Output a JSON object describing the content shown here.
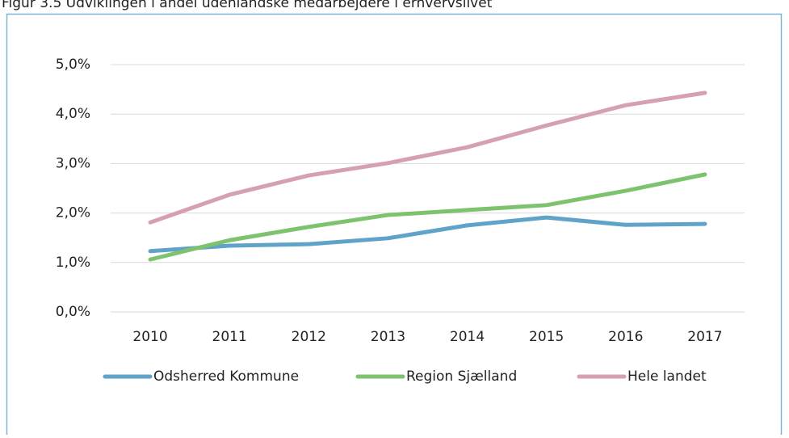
{
  "chart_data": {
    "type": "line",
    "title": "Figur 3.5 Udviklingen i andel udenlandske medarbejdere i erhvervslivet",
    "categories": [
      "2010",
      "2011",
      "2012",
      "2013",
      "2014",
      "2015",
      "2016",
      "2017"
    ],
    "series": [
      {
        "name": "Odsherred Kommune",
        "color": "#5fa3c8",
        "values": [
          1.23,
          1.34,
          1.37,
          1.49,
          1.75,
          1.91,
          1.76,
          1.78
        ]
      },
      {
        "name": "Region Sjælland",
        "color": "#7dc36e",
        "values": [
          1.06,
          1.45,
          1.72,
          1.96,
          2.06,
          2.16,
          2.45,
          2.78
        ]
      },
      {
        "name": "Hele landet",
        "color": "#d5a0b2",
        "values": [
          1.81,
          2.37,
          2.76,
          3.01,
          3.33,
          3.77,
          4.18,
          4.43
        ]
      }
    ],
    "ylim": [
      0,
      5
    ],
    "yticks": [
      {
        "value": 0,
        "label": "0,0%"
      },
      {
        "value": 1,
        "label": "1,0%"
      },
      {
        "value": 2,
        "label": "2,0%"
      },
      {
        "value": 3,
        "label": "3,0%"
      },
      {
        "value": 4,
        "label": "4,0%"
      },
      {
        "value": 5,
        "label": "5,0%"
      }
    ],
    "grid": true,
    "legend": "bottom"
  }
}
